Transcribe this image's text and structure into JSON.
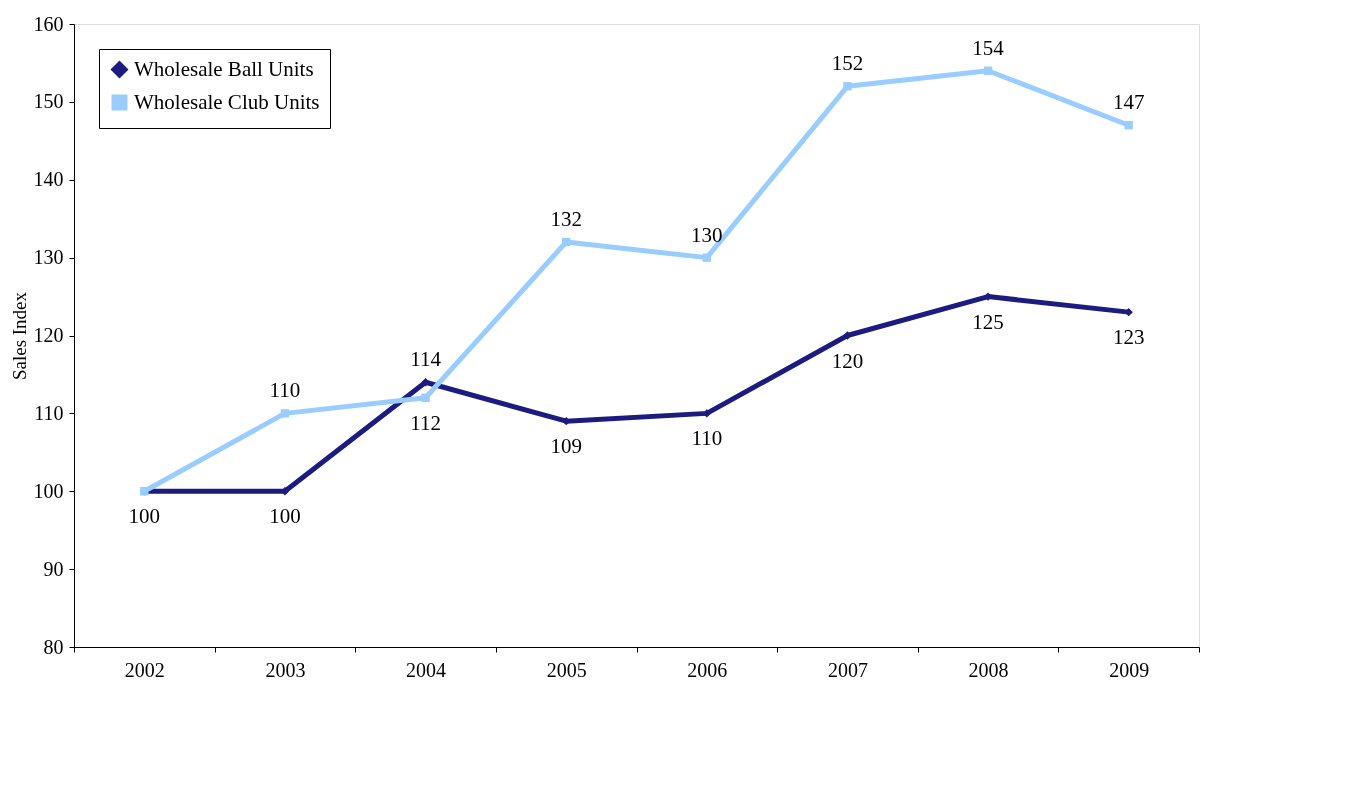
{
  "chart_data": {
    "type": "line",
    "ylabel": "Sales Index",
    "categories": [
      "2002",
      "2003",
      "2004",
      "2005",
      "2006",
      "2007",
      "2008",
      "2009"
    ],
    "series": [
      {
        "name": "Wholesale Ball Units",
        "color": "#1c1c80",
        "marker": "diamond",
        "values": [
          100,
          100,
          114,
          109,
          110,
          120,
          125,
          123
        ],
        "value_labels": [
          "100",
          "100",
          "114",
          "109",
          "110",
          "120",
          "125",
          "123"
        ]
      },
      {
        "name": "Wholesale Club Units",
        "color": "#99ccff",
        "marker": "square",
        "values": [
          100,
          110,
          112,
          132,
          130,
          152,
          154,
          147
        ],
        "value_labels": [
          null,
          "110",
          "112",
          "132",
          "130",
          "152",
          "154",
          "147"
        ]
      }
    ],
    "ylim": [
      80,
      160
    ],
    "yticks": [
      80,
      90,
      100,
      110,
      120,
      130,
      140,
      150,
      160
    ],
    "grid": false,
    "legend": "top left",
    "line_style": "solid"
  }
}
